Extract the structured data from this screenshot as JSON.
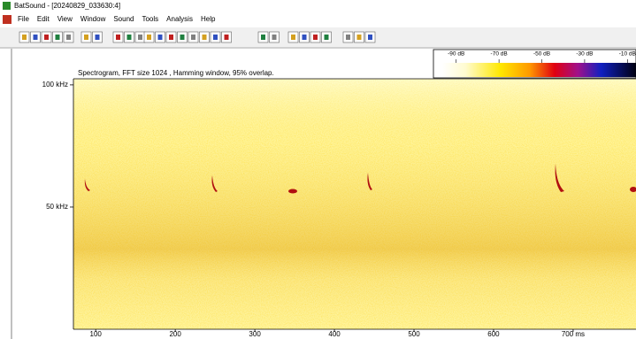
{
  "window": {
    "title": "BatSound - [20240829_033630:4]",
    "menu": [
      "File",
      "Edit",
      "View",
      "Window",
      "Sound",
      "Tools",
      "Analysis",
      "Help"
    ]
  },
  "spectrogram": {
    "caption": "Spectrogram, FFT size 1024 , Hamming window, 95% overlap.",
    "xlim": [
      72,
      779
    ],
    "ylim": [
      0,
      102.5
    ],
    "xticks": [
      100,
      200,
      300,
      400,
      500,
      600,
      {
        "value": 700,
        "label": "700 ms"
      }
    ],
    "yticks": [
      {
        "value": 50,
        "label": "50 kHz"
      },
      {
        "value": 100,
        "label": "100 kHz"
      }
    ]
  },
  "colorbar": {
    "xlim": [
      -96.5,
      -6
    ],
    "ticks": [
      {
        "value": -90,
        "label": "-90 dB"
      },
      {
        "value": -70,
        "label": "-70 dB"
      },
      {
        "value": -50,
        "label": "-50 dB"
      },
      {
        "value": -30,
        "label": "-30 dB"
      },
      {
        "value": -10,
        "label": "-10 dB"
      }
    ]
  }
}
